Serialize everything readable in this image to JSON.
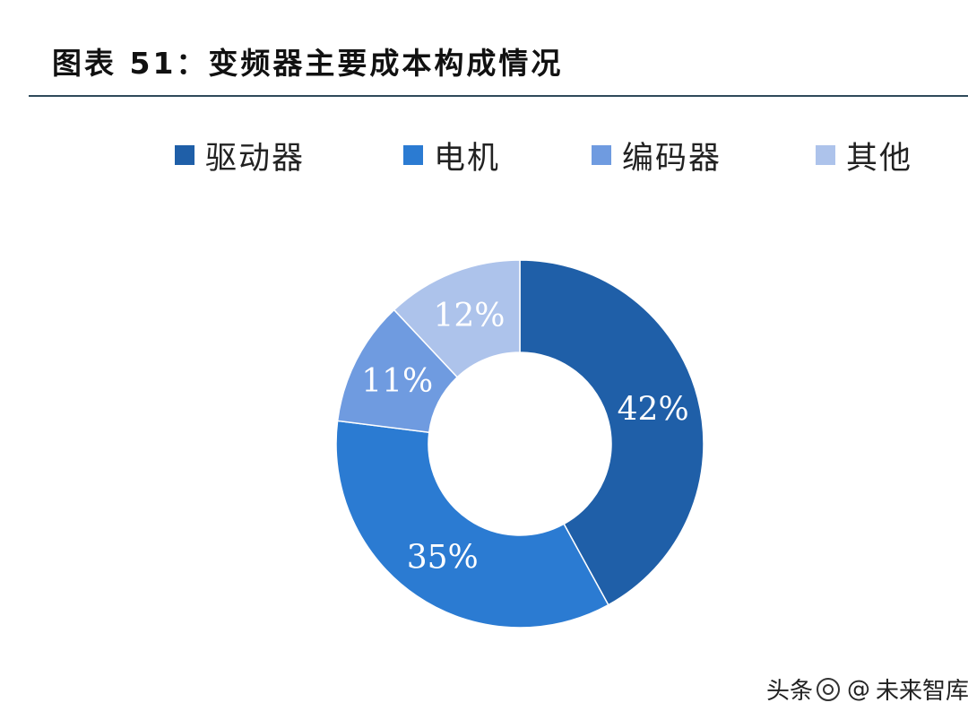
{
  "header": {
    "title": "图表 51：变频器主要成本构成情况"
  },
  "chart_data": {
    "type": "pie",
    "donut": true,
    "categories": [
      "驱动器",
      "电机",
      "编码器",
      "其他"
    ],
    "values": [
      42,
      35,
      11,
      12
    ],
    "labels": [
      "42%",
      "35%",
      "11%",
      "12%"
    ],
    "colors": [
      "#1f5fa8",
      "#2b7bd2",
      "#6f9be0",
      "#adc3eb"
    ],
    "start": "top, clockwise",
    "legend_position": "top"
  },
  "watermark": {
    "source": "头条",
    "at": "@",
    "author": "未来智库"
  }
}
